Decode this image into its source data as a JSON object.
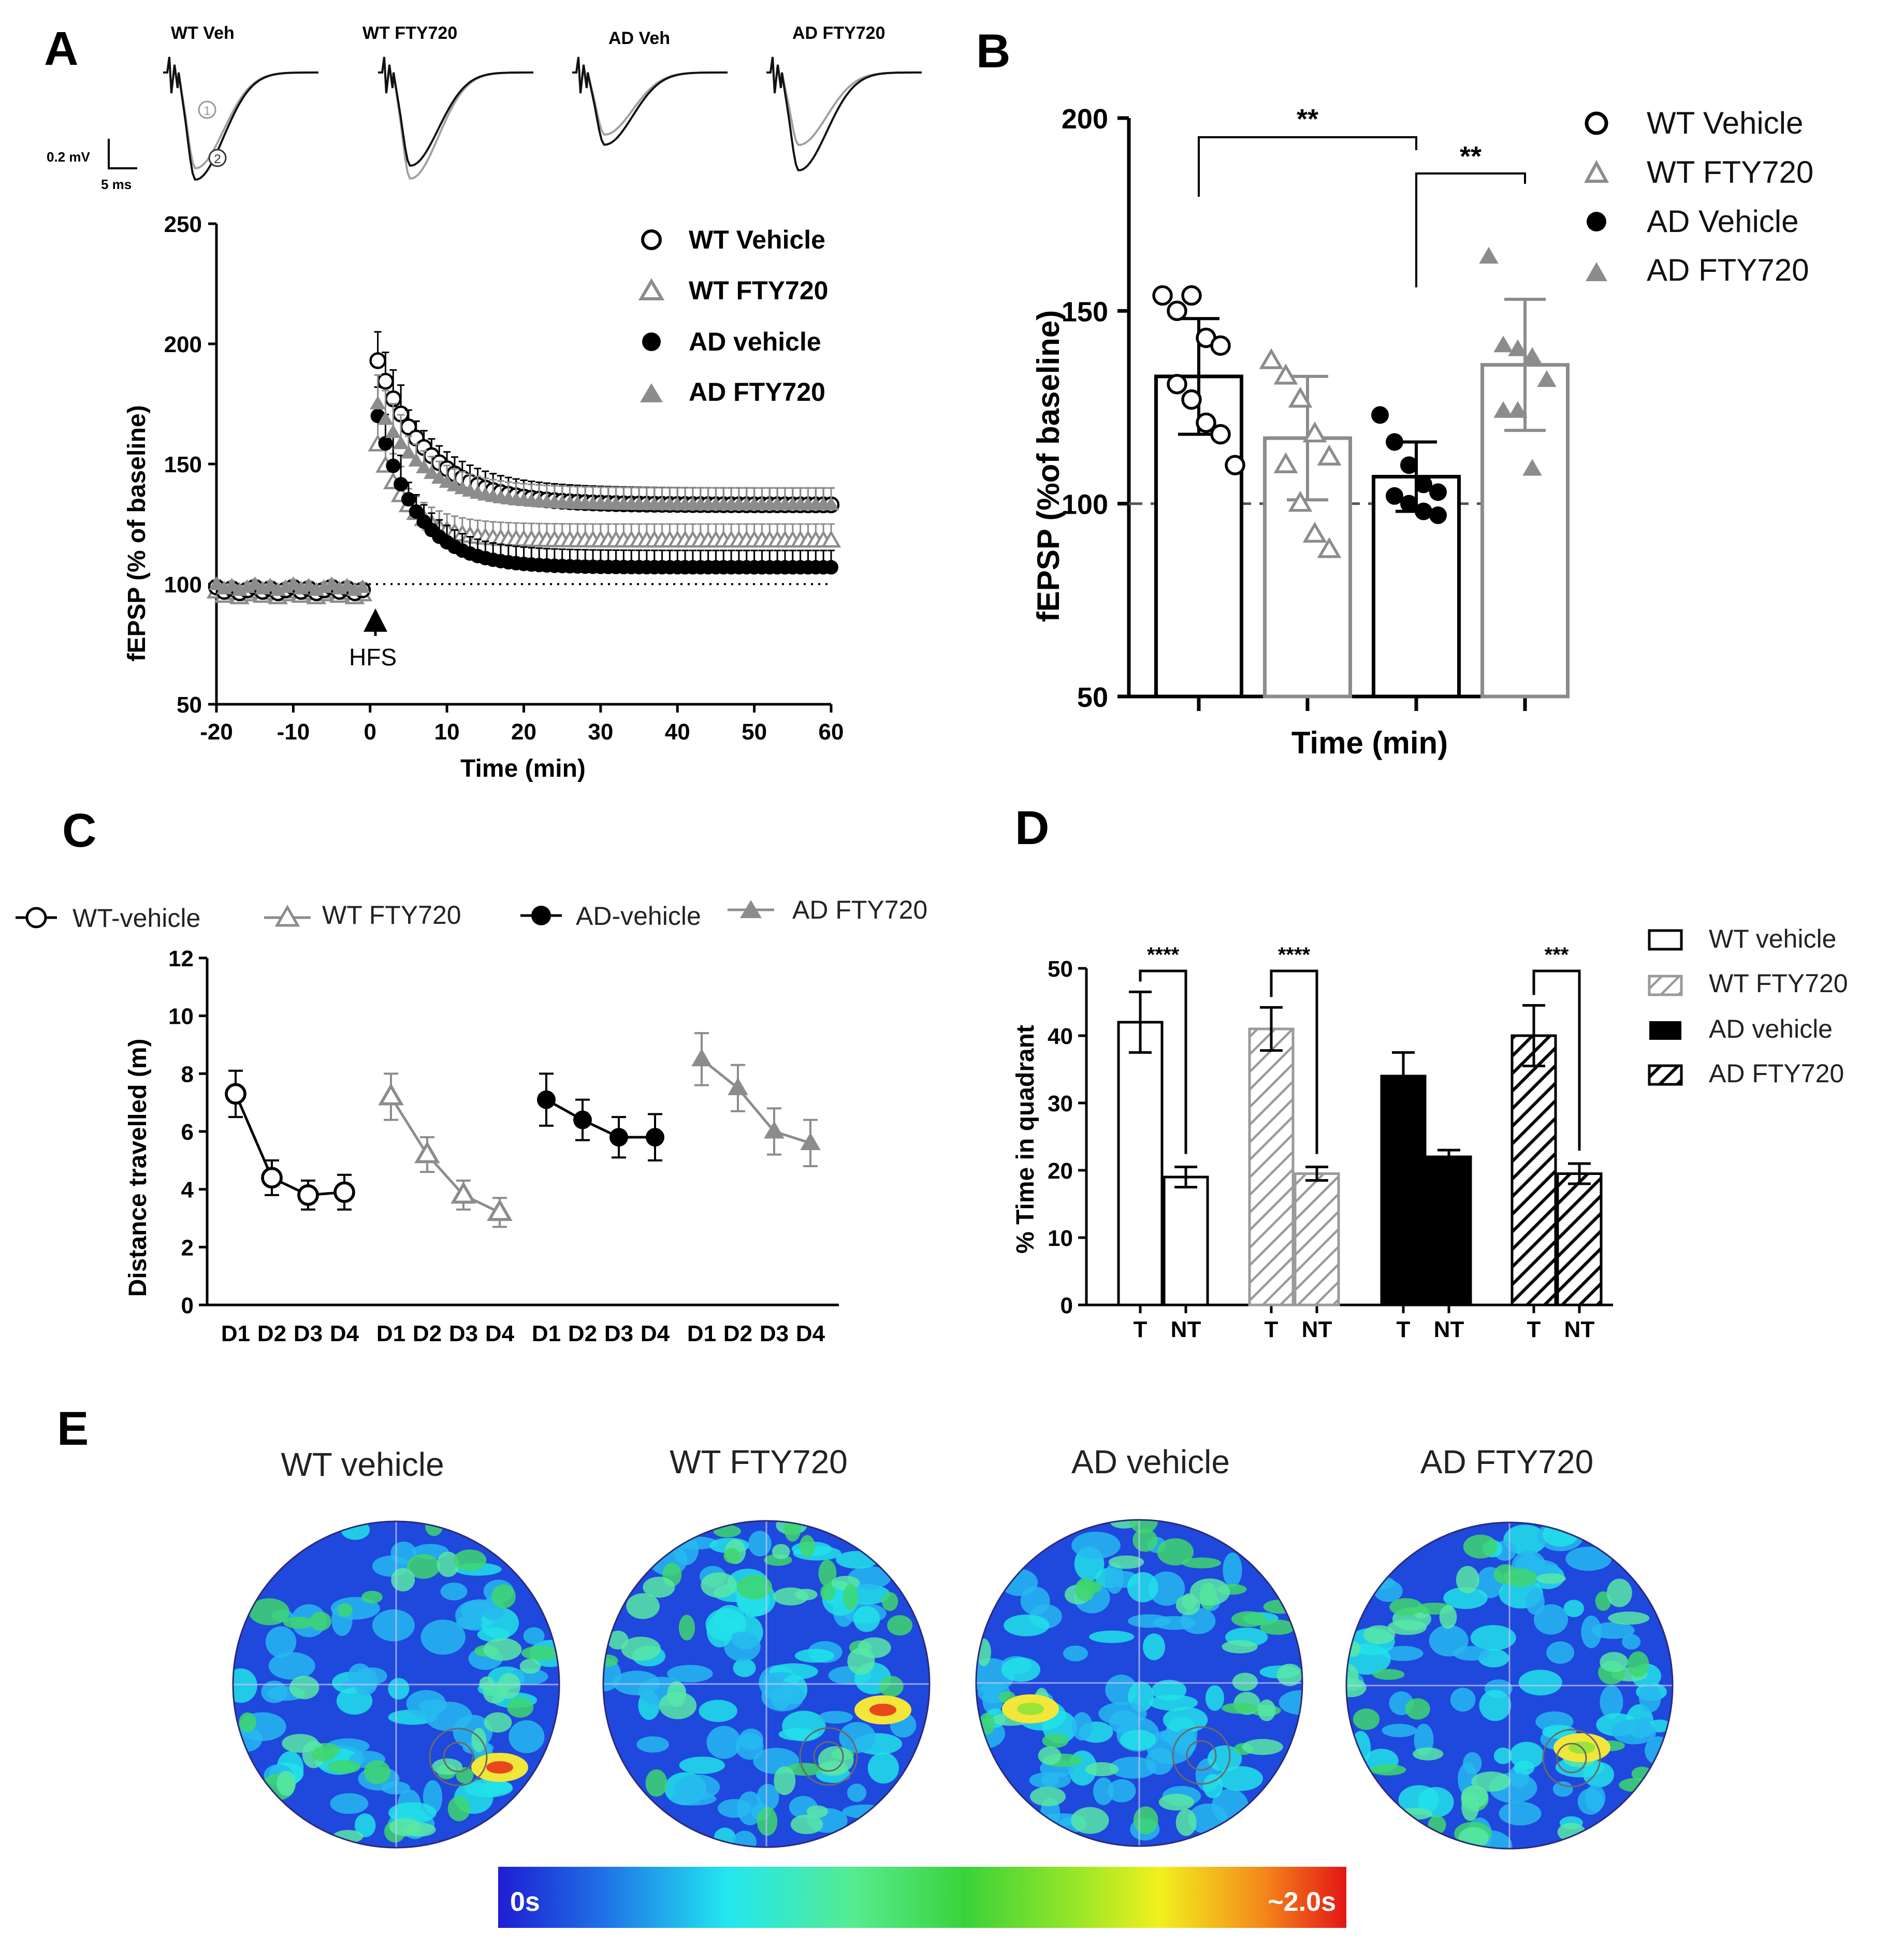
{
  "colors": {
    "gray": "#8c8c8c",
    "black": "#000000",
    "white": "#ffffff"
  },
  "panel_labels": {
    "A": "A",
    "B": "B",
    "C": "C",
    "D": "D",
    "E": "E"
  },
  "chart_data": [
    {
      "panel": "A",
      "type": "line",
      "xlabel": "Time (min)",
      "ylabel": "fEPSP (% of baseline)",
      "xlim": [
        -20,
        60
      ],
      "ylim": [
        50,
        250
      ],
      "xticks": [
        -20,
        -10,
        0,
        10,
        20,
        30,
        40,
        50,
        60
      ],
      "yticks": [
        50,
        100,
        150,
        200,
        250
      ],
      "annotation": "HFS",
      "trace_titles": [
        "WT Veh",
        "WT FTY720",
        "AD Veh",
        "AD FTY720"
      ],
      "scale_bar": {
        "voltage": "0.2 mV",
        "time": "5 ms"
      },
      "trace_markers": [
        "1",
        "2"
      ],
      "legend": [
        "WT Vehicle",
        "WT FTY720",
        "AD  vehicle",
        "AD FTY720"
      ],
      "series": [
        {
          "name": "WT Vehicle",
          "marker": "circle-open",
          "color": "#000000",
          "baseline": 100,
          "peak": 193,
          "plateau": 133,
          "tau": 6.5
        },
        {
          "name": "WT FTY720",
          "marker": "triangle-open",
          "color": "#8c8c8c",
          "baseline": 98,
          "peak": 158,
          "plateau": 118,
          "tau": 4.0
        },
        {
          "name": "AD  vehicle",
          "marker": "circle-filled",
          "color": "#000000",
          "baseline": 100,
          "peak": 170,
          "plateau": 107,
          "tau": 5.0
        },
        {
          "name": "AD FTY720",
          "marker": "triangle-filled",
          "color": "#8c8c8c",
          "baseline": 101,
          "peak": 175,
          "plateau": 133,
          "tau": 6.0
        }
      ]
    },
    {
      "panel": "B",
      "type": "bar",
      "xlabel": "Time (min)",
      "ylabel": "fEPSP (%of baseline)",
      "ylim": [
        50,
        200
      ],
      "yticks": [
        50,
        100,
        150,
        200
      ],
      "reference_line": 100,
      "legend": [
        "WT Vehicle",
        "WT FTY720",
        "AD Vehicle",
        "AD FTY720"
      ],
      "bars": [
        {
          "name": "WT Vehicle",
          "value": 133,
          "sd": 15,
          "marker": "circle-open",
          "color": "#000000",
          "points": [
            154,
            150,
            154,
            143,
            141,
            131,
            127,
            121,
            118,
            110
          ]
        },
        {
          "name": "WT FTY720",
          "value": 117,
          "sd": 16,
          "marker": "triangle-open",
          "color": "#8c8c8c",
          "points": [
            137,
            133,
            127,
            118,
            112,
            110,
            100,
            92,
            88
          ]
        },
        {
          "name": "AD Vehicle",
          "value": 107,
          "sd": 9,
          "marker": "circle-filled",
          "color": "#000000",
          "points": [
            123,
            116,
            110,
            105,
            103,
            102,
            100,
            98,
            97
          ]
        },
        {
          "name": "AD FTY720",
          "value": 136,
          "sd": 17,
          "marker": "triangle-filled",
          "color": "#8c8c8c",
          "points": [
            164,
            141,
            140,
            138,
            132,
            124,
            124,
            109
          ]
        }
      ],
      "significance": [
        {
          "from": 0,
          "to": 2,
          "label": "**"
        },
        {
          "from": 2,
          "to": 3,
          "label": "**"
        }
      ]
    },
    {
      "panel": "C",
      "type": "line",
      "ylabel": "Distance travelled (m)",
      "ylim": [
        0,
        12
      ],
      "yticks": [
        0,
        2,
        4,
        6,
        8,
        10,
        12
      ],
      "categories": [
        "D1",
        "D2",
        "D3",
        "D4"
      ],
      "legend": [
        "WT-vehicle",
        "WT FTY720",
        "AD-vehicle",
        "AD FTY720"
      ],
      "series": [
        {
          "name": "WT-vehicle",
          "marker": "circle-open",
          "color": "#000000",
          "values": [
            7.3,
            4.4,
            3.8,
            3.9
          ],
          "err": [
            0.8,
            0.6,
            0.5,
            0.6
          ]
        },
        {
          "name": "WT FTY720",
          "marker": "triangle-open",
          "color": "#8c8c8c",
          "values": [
            7.2,
            5.2,
            3.8,
            3.2
          ],
          "err": [
            0.8,
            0.6,
            0.5,
            0.5
          ]
        },
        {
          "name": "AD-vehicle",
          "marker": "circle-filled",
          "color": "#000000",
          "values": [
            7.1,
            6.4,
            5.8,
            5.8
          ],
          "err": [
            0.9,
            0.7,
            0.7,
            0.8
          ]
        },
        {
          "name": "AD FTY720",
          "marker": "triangle-filled",
          "color": "#8c8c8c",
          "values": [
            8.5,
            7.5,
            6.0,
            5.6
          ],
          "err": [
            0.9,
            0.8,
            0.8,
            0.8
          ]
        }
      ]
    },
    {
      "panel": "D",
      "type": "bar",
      "ylabel": "% Time in quadrant",
      "ylim": [
        0,
        50
      ],
      "yticks": [
        0,
        10,
        20,
        30,
        40,
        50
      ],
      "categories": [
        "T",
        "NT"
      ],
      "legend": [
        "WT vehicle",
        "WT FTY720",
        "AD vehicle",
        "AD FTY720"
      ],
      "groups": [
        {
          "name": "WT vehicle",
          "fill": "open",
          "T": 42,
          "T_err": 4.5,
          "NT": 19,
          "NT_err": 1.5,
          "sig": "****"
        },
        {
          "name": "WT FTY720",
          "fill": "hatch-gray",
          "T": 41,
          "T_err": 3.2,
          "NT": 19.5,
          "NT_err": 1.0,
          "sig": "****"
        },
        {
          "name": "AD vehicle",
          "fill": "solid-black",
          "T": 34,
          "T_err": 3.5,
          "NT": 22,
          "NT_err": 1.0,
          "sig": ""
        },
        {
          "name": "AD FTY720",
          "fill": "hatch-black",
          "T": 40,
          "T_err": 4.5,
          "NT": 19.5,
          "NT_err": 1.5,
          "sig": "***"
        }
      ]
    },
    {
      "panel": "E",
      "type": "heatmap",
      "titles": [
        "WT vehicle",
        "WT FTY720",
        "AD vehicle",
        "AD FTY720"
      ],
      "colorbar": {
        "min_label": "0s",
        "max_label": "~2.0s",
        "min": 0,
        "max": 2.0
      }
    }
  ]
}
